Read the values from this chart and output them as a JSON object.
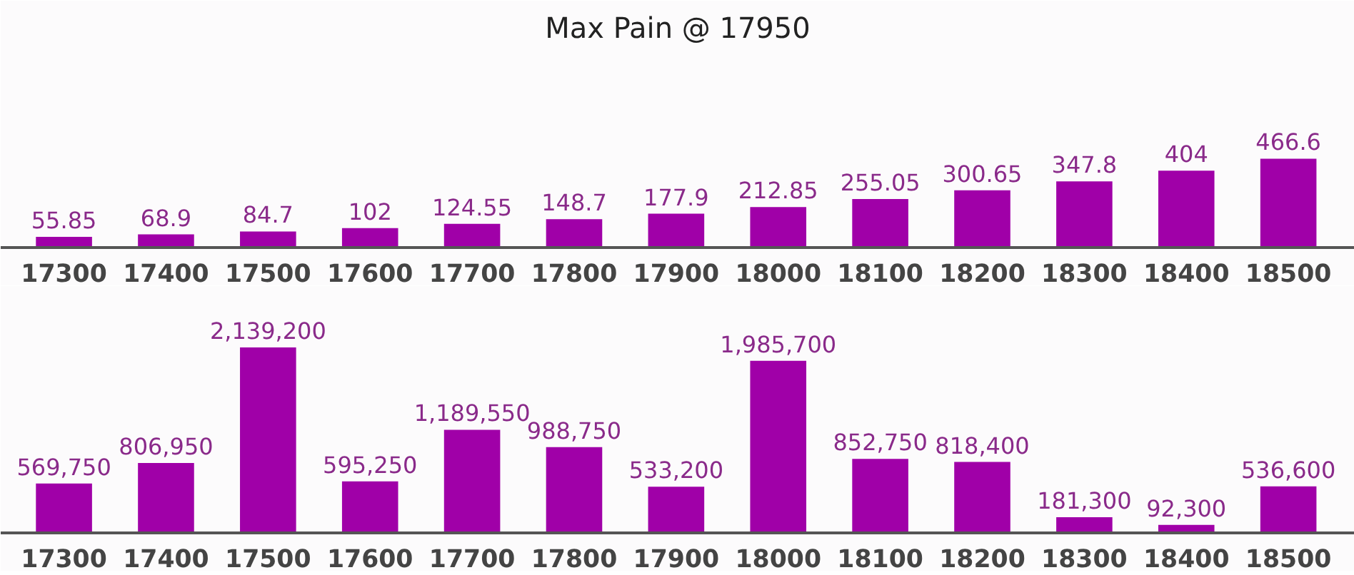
{
  "chart_data": [
    {
      "type": "bar",
      "title": "Max Pain @ 17950",
      "categories": [
        "17300",
        "17400",
        "17500",
        "17600",
        "17700",
        "17800",
        "17900",
        "18000",
        "18100",
        "18200",
        "18300",
        "18400",
        "18500"
      ],
      "values": [
        55.85,
        68.9,
        84.7,
        102,
        124.55,
        148.7,
        177.9,
        212.85,
        255.05,
        300.65,
        347.8,
        404,
        466.6
      ],
      "value_labels": [
        "55.85",
        "68.9",
        "84.7",
        "102",
        "124.55",
        "148.7",
        "177.9",
        "212.85",
        "255.05",
        "300.65",
        "347.8",
        "404",
        "466.6"
      ],
      "color": "#a000a8",
      "tick_labels": "x"
    },
    {
      "type": "bar",
      "categories": [
        "17300",
        "17400",
        "17500",
        "17600",
        "17700",
        "17800",
        "17900",
        "18000",
        "18100",
        "18200",
        "18300",
        "18400",
        "18500"
      ],
      "values": [
        569750,
        806950,
        2139200,
        595250,
        1189550,
        988750,
        533200,
        1985700,
        852750,
        818400,
        181300,
        92300,
        536600
      ],
      "value_labels": [
        "569,750",
        "806,950",
        "2,139,200",
        "595,250",
        "1,189,550",
        "988,750",
        "533,200",
        "1,985,700",
        "852,750",
        "818,400",
        "181,300",
        "92,300",
        "536,600"
      ],
      "color": "#a000a8",
      "tick_labels": "x"
    }
  ]
}
